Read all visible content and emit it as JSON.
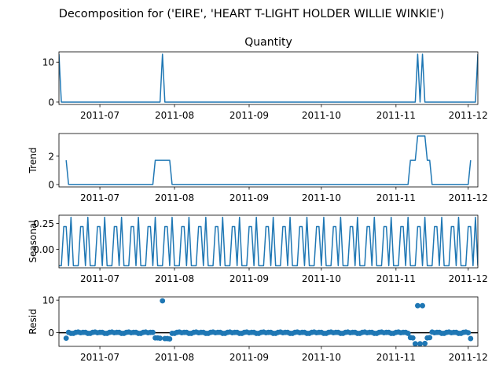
{
  "figure": {
    "suptitle": "Decomposition for ('EIRE', 'HEART T-LIGHT HOLDER WILLIE WINKIE')"
  },
  "chart_data": [
    {
      "id": "observed",
      "type": "line",
      "title": "Quantity",
      "ylabel": "",
      "color": "#1f77b4",
      "xlim": [
        "2011-06-14",
        "2011-12-05"
      ],
      "ylim": [
        -0.6,
        12.6
      ],
      "yticks": [
        0,
        10
      ],
      "xticks": [
        "2011-07-01",
        "2011-08-01",
        "2011-09-01",
        "2011-10-01",
        "2011-11-01",
        "2011-12-01"
      ],
      "xtick_labels": [
        "2011-07",
        "2011-08",
        "2011-09",
        "2011-10",
        "2011-11",
        "2011-12"
      ],
      "x": [
        "2011-06-14",
        "2011-06-15",
        "2011-07-26",
        "2011-07-27",
        "2011-07-28",
        "2011-11-09",
        "2011-11-10",
        "2011-11-11",
        "2011-11-12",
        "2011-11-13",
        "2011-12-04",
        "2011-12-05"
      ],
      "y": [
        12,
        0,
        0,
        12,
        0,
        0,
        12,
        0,
        12,
        0,
        0,
        12
      ]
    },
    {
      "id": "trend",
      "type": "line",
      "title": "",
      "ylabel": "Trend",
      "color": "#1f77b4",
      "xlim": [
        "2011-06-14",
        "2011-12-05"
      ],
      "ylim": [
        -0.17,
        3.6
      ],
      "yticks": [
        0,
        2
      ],
      "xticks": [
        "2011-07-01",
        "2011-08-01",
        "2011-09-01",
        "2011-10-01",
        "2011-11-01",
        "2011-12-01"
      ],
      "xtick_labels": [
        "2011-07",
        "2011-08",
        "2011-09",
        "2011-10",
        "2011-11",
        "2011-12"
      ],
      "x": [
        "2011-06-17",
        "2011-06-18",
        "2011-07-23",
        "2011-07-24",
        "2011-07-30",
        "2011-07-31",
        "2011-11-06",
        "2011-11-07",
        "2011-11-09",
        "2011-11-10",
        "2011-11-13",
        "2011-11-14",
        "2011-11-15",
        "2011-11-16",
        "2011-12-01",
        "2011-12-02"
      ],
      "y": [
        1.71,
        0,
        0,
        1.71,
        1.71,
        0,
        0,
        1.71,
        1.71,
        3.43,
        3.43,
        1.71,
        1.71,
        0,
        0,
        1.71
      ]
    },
    {
      "id": "seasonal",
      "type": "line",
      "title": "",
      "ylabel": "Seasonal",
      "color": "#1f77b4",
      "xlim": [
        "2011-06-14",
        "2011-12-05"
      ],
      "ylim": [
        -0.18,
        0.33
      ],
      "yticks": [
        0.25,
        0.0
      ],
      "ytick_labels": [
        "0.25",
        "0.00"
      ],
      "xticks": [
        "2011-07-01",
        "2011-08-01",
        "2011-09-01",
        "2011-10-01",
        "2011-11-01",
        "2011-12-01"
      ],
      "xtick_labels": [
        "2011-07",
        "2011-08",
        "2011-09",
        "2011-10",
        "2011-11",
        "2011-12"
      ],
      "period": 7,
      "start": "2011-06-14",
      "end": "2011-12-05",
      "pattern": [
        -0.16,
        -0.16,
        0.22,
        0.22,
        -0.16,
        0.31,
        -0.16
      ]
    },
    {
      "id": "resid",
      "type": "scatter",
      "title": "",
      "ylabel": "Resid",
      "color": "#1f77b4",
      "xlim": [
        "2011-06-14",
        "2011-12-05"
      ],
      "ylim": [
        -4.2,
        11.0
      ],
      "yticks": [
        0,
        10
      ],
      "xticks": [
        "2011-07-01",
        "2011-08-01",
        "2011-09-01",
        "2011-10-01",
        "2011-11-01",
        "2011-12-01"
      ],
      "xtick_labels": [
        "2011-07",
        "2011-08",
        "2011-09",
        "2011-10",
        "2011-11",
        "2011-12"
      ],
      "zero_line": true,
      "start": "2011-06-17",
      "end": "2011-12-02",
      "baseline": [
        0.1,
        0.1,
        -0.2,
        -0.2,
        0.1,
        0.2,
        0.0
      ],
      "overrides": {
        "2011-06-17": -1.7,
        "2011-07-24": -1.6,
        "2011-07-25": -1.6,
        "2011-07-26": -1.7,
        "2011-07-27": 9.8,
        "2011-07-28": -1.8,
        "2011-07-29": -1.8,
        "2011-07-30": -1.9,
        "2011-11-07": -1.5,
        "2011-11-08": -1.6,
        "2011-11-09": -3.4,
        "2011-11-10": 8.3,
        "2011-11-11": -3.4,
        "2011-11-12": 8.3,
        "2011-11-13": -3.3,
        "2011-11-14": -1.6,
        "2011-11-15": -1.5,
        "2011-12-02": -1.8
      }
    }
  ]
}
